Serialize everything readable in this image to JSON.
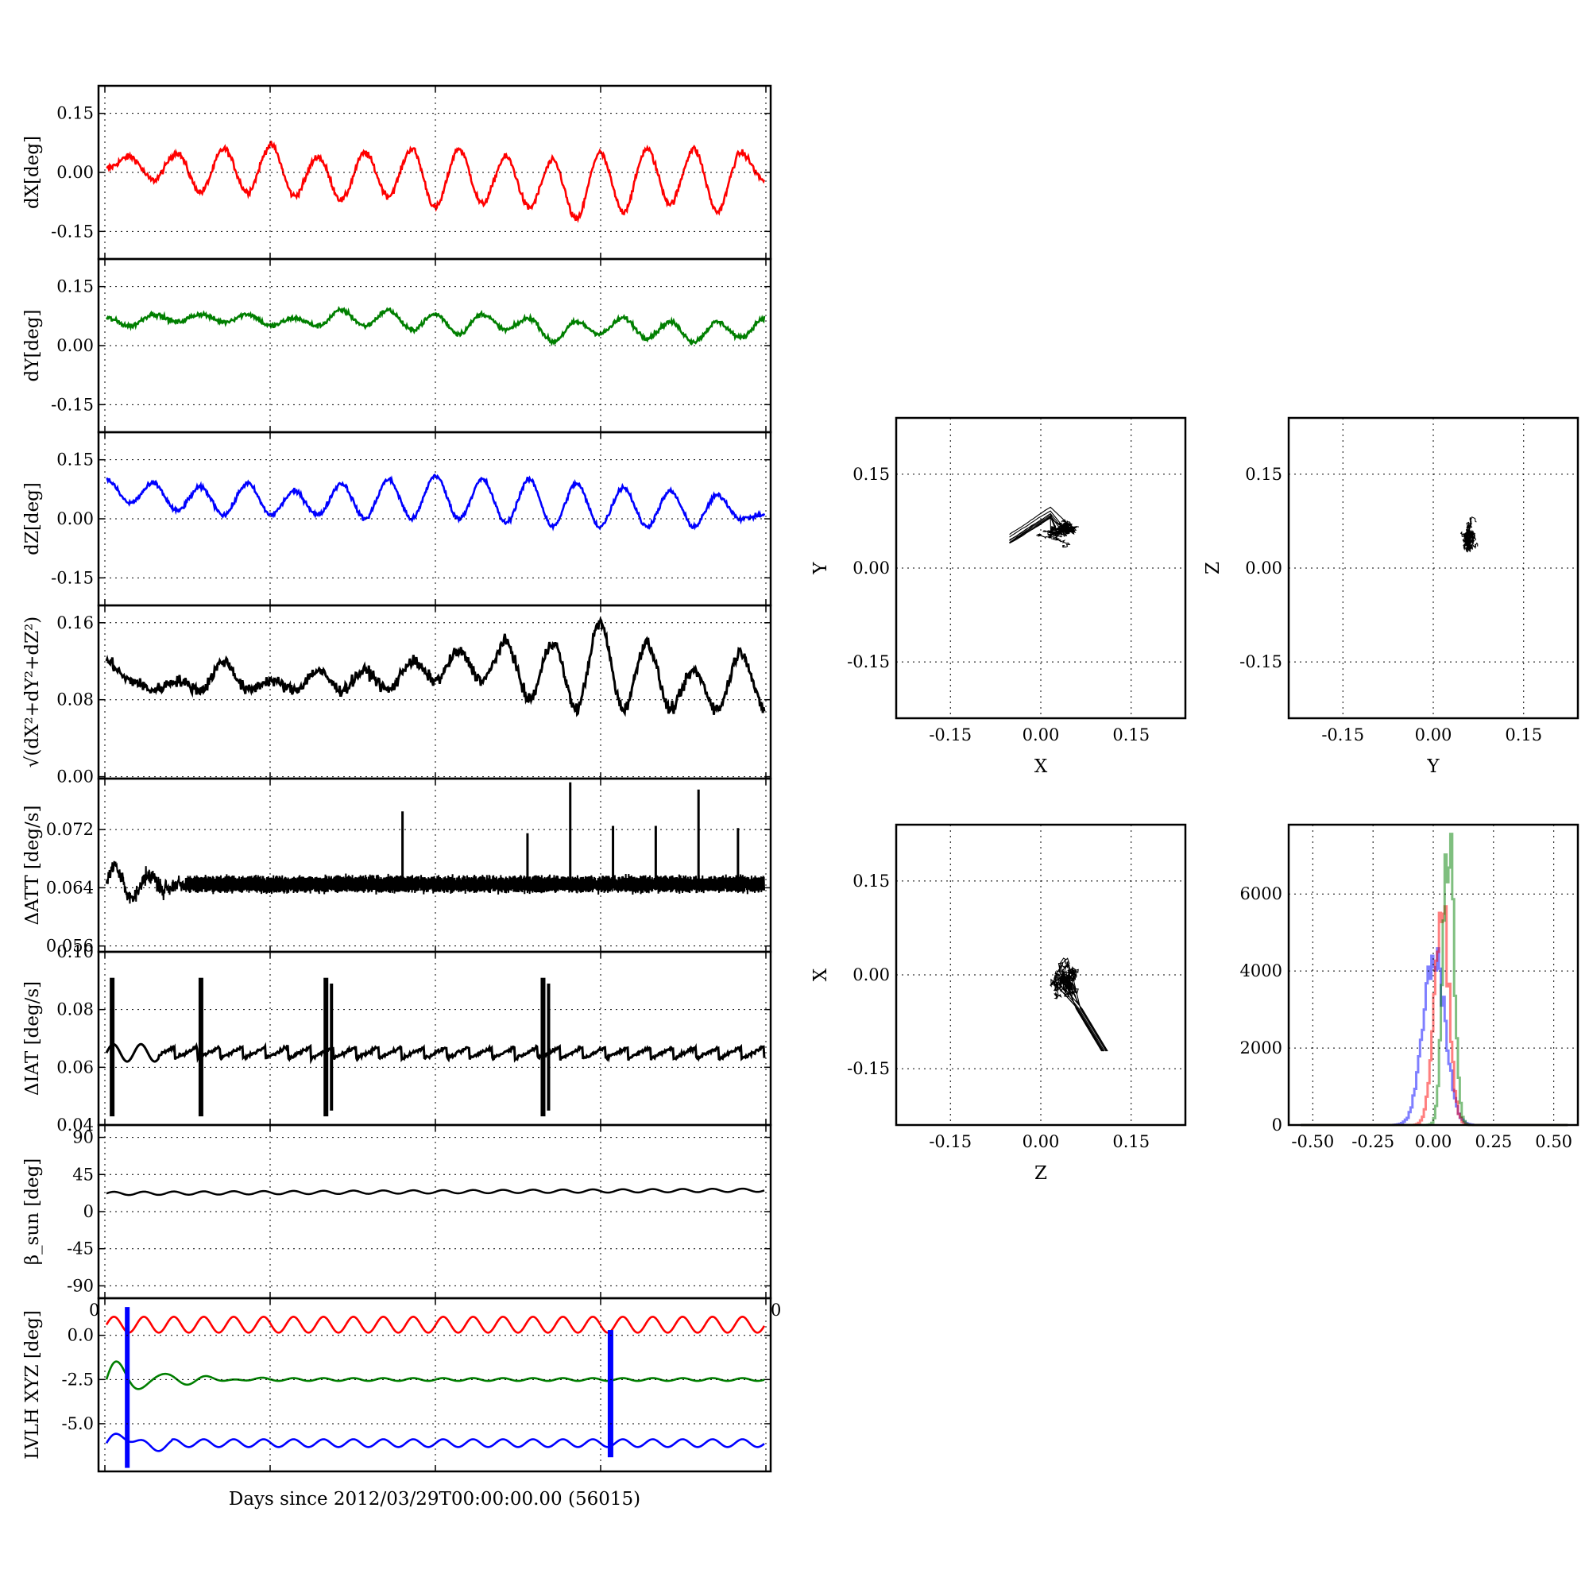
{
  "figure": {
    "xlabel_bottom": "Days since 2012/03/29T00:00:00.00 (56015)"
  },
  "chart_data": [
    {
      "id": "dx",
      "type": "line",
      "ylabel": "dX[deg]",
      "ylim": [
        -0.22,
        0.22
      ],
      "yticks": [
        "0.15",
        "0.00",
        "-0.15"
      ],
      "ytick_values": [
        0.15,
        0.0,
        -0.15
      ],
      "series": [
        {
          "color": "#ff0000",
          "period": 0.0625,
          "mean": -0.005,
          "amp": 0.06,
          "noise": 0.008,
          "values": [
            0.01,
            0.04,
            -0.02,
            0.05,
            -0.05,
            0.06,
            -0.05,
            0.07,
            -0.06,
            0.04,
            -0.07,
            0.05,
            -0.06,
            0.06,
            -0.09,
            0.06,
            -0.08,
            0.04,
            -0.09,
            0.03,
            -0.12,
            0.05,
            -0.1,
            0.06,
            -0.08,
            0.06,
            -0.1,
            0.05,
            -0.02
          ]
        }
      ],
      "grid": true
    },
    {
      "id": "dy",
      "type": "line",
      "ylabel": "dY[deg]",
      "ylim": [
        -0.22,
        0.22
      ],
      "yticks": [
        "0.15",
        "0.00",
        "-0.15"
      ],
      "ytick_values": [
        0.15,
        0.0,
        -0.15
      ],
      "series": [
        {
          "color": "#007f00",
          "period": 0.0625,
          "mean": 0.06,
          "amp": 0.025,
          "noise": 0.006,
          "values": [
            0.07,
            0.05,
            0.08,
            0.06,
            0.08,
            0.06,
            0.08,
            0.05,
            0.07,
            0.05,
            0.09,
            0.05,
            0.09,
            0.04,
            0.08,
            0.03,
            0.08,
            0.04,
            0.07,
            0.01,
            0.06,
            0.03,
            0.07,
            0.02,
            0.06,
            0.01,
            0.06,
            0.02,
            0.07
          ]
        }
      ],
      "grid": true
    },
    {
      "id": "dz",
      "type": "line",
      "ylabel": "dZ[deg]",
      "ylim": [
        -0.22,
        0.22
      ],
      "yticks": [
        "0.15",
        "0.00",
        "-0.15"
      ],
      "ytick_values": [
        0.15,
        0.0,
        -0.15
      ],
      "series": [
        {
          "color": "#0000ff",
          "period": 0.0625,
          "mean": 0.045,
          "amp": 0.04,
          "noise": 0.006,
          "values": [
            0.1,
            0.04,
            0.09,
            0.02,
            0.08,
            0.01,
            0.09,
            0.01,
            0.07,
            0.01,
            0.09,
            0.0,
            0.1,
            0.0,
            0.11,
            0.0,
            0.1,
            -0.01,
            0.1,
            -0.02,
            0.09,
            -0.02,
            0.08,
            -0.02,
            0.07,
            -0.02,
            0.06,
            0.0,
            0.01
          ]
        }
      ],
      "grid": true
    },
    {
      "id": "dtot",
      "type": "line",
      "ylabel": "√(dX²+dY²+dZ²)",
      "ylim": [
        -0.002,
        0.178
      ],
      "yticks": [
        "0.16",
        "0.08",
        "0.00"
      ],
      "ytick_values": [
        0.16,
        0.08,
        0.0
      ],
      "series": [
        {
          "color": "#000000",
          "period": 0.0625,
          "mean": 0.09,
          "amp": 0.01,
          "noise": 0.006,
          "values": [
            0.12,
            0.1,
            0.09,
            0.1,
            0.09,
            0.12,
            0.09,
            0.1,
            0.09,
            0.11,
            0.09,
            0.11,
            0.09,
            0.12,
            0.1,
            0.13,
            0.1,
            0.14,
            0.08,
            0.14,
            0.07,
            0.16,
            0.07,
            0.14,
            0.07,
            0.11,
            0.07,
            0.13,
            0.07
          ]
        }
      ],
      "grid": true
    },
    {
      "id": "datt",
      "type": "line",
      "ylabel": "ΔATT [deg/s]",
      "ylim": [
        0.0552,
        0.079
      ],
      "yticks": [
        "0.072",
        "0.064",
        "0.056"
      ],
      "ytick_values": [
        0.072,
        0.064,
        0.056
      ],
      "series": [
        {
          "color": "#000000",
          "mean": 0.0645,
          "spikes": [
            {
              "x": 0.45,
              "y": 0.0745
            },
            {
              "x": 0.64,
              "y": 0.0715
            },
            {
              "x": 0.705,
              "y": 0.0785
            },
            {
              "x": 0.77,
              "y": 0.0725
            },
            {
              "x": 0.835,
              "y": 0.0725
            },
            {
              "x": 0.9,
              "y": 0.0775
            },
            {
              "x": 0.96,
              "y": 0.0722
            }
          ]
        }
      ],
      "grid": true
    },
    {
      "id": "diat",
      "type": "line",
      "ylabel": "ΔIAT [deg/s]",
      "ylim": [
        0.04,
        0.1
      ],
      "yticks": [
        "0.10",
        "0.08",
        "0.06",
        "0.04"
      ],
      "ytick_values": [
        0.1,
        0.08,
        0.06,
        0.04
      ],
      "series": [
        {
          "color": "#000000",
          "mean": 0.065,
          "bursts": [
            0.005,
            0.14,
            0.33,
            0.66
          ]
        }
      ],
      "grid": true
    },
    {
      "id": "beta",
      "type": "line",
      "ylabel": "β_sun [deg]",
      "ylim": [
        -105,
        105
      ],
      "yticks": [
        "90",
        "45",
        "0",
        "-45",
        "-90"
      ],
      "ytick_values": [
        90,
        45,
        0,
        -45,
        -90
      ],
      "series": [
        {
          "color": "#000000",
          "mean": 22,
          "amp": 2,
          "period": 0.0455
        }
      ],
      "grid": true
    },
    {
      "id": "lvlh",
      "type": "line",
      "ylabel": "LVLH XYZ [deg]",
      "ylim": [
        -7.7,
        2.1
      ],
      "yticks": [
        "0.0",
        "-2.5",
        "-5.0"
      ],
      "ytick_values": [
        0.0,
        -2.5,
        -5.0
      ],
      "xticks_shown": [
        "0",
        "0"
      ],
      "series": [
        {
          "color": "#ff0000",
          "mean": 0.6,
          "amp": 0.45
        },
        {
          "color": "#007f00",
          "mean": -2.5,
          "amp": 0.08
        },
        {
          "color": "#0000ff",
          "mean": -6.1,
          "amp": 0.22
        }
      ],
      "grid": true
    },
    {
      "id": "xy",
      "type": "scatter",
      "xlabel": "X",
      "ylabel": "Y",
      "xlim": [
        -0.24,
        0.24
      ],
      "ylim": [
        -0.24,
        0.24
      ],
      "xticks": [
        "-0.15",
        "0.00",
        "0.15"
      ],
      "yticks": [
        "0.15",
        "0.00",
        "-0.15"
      ],
      "tick_values": [
        -0.15,
        0.0,
        0.15
      ],
      "cloud": {
        "cx": 0.04,
        "cy": 0.06,
        "sx": 0.035,
        "sy": 0.018,
        "hook": "left"
      },
      "grid": true
    },
    {
      "id": "yz",
      "type": "scatter",
      "xlabel": "Y",
      "ylabel": "Z",
      "xlim": [
        -0.24,
        0.24
      ],
      "ylim": [
        -0.24,
        0.24
      ],
      "xticks": [
        "-0.15",
        "0.00",
        "0.15"
      ],
      "yticks": [
        "0.15",
        "0.00",
        "-0.15"
      ],
      "tick_values": [
        -0.15,
        0.0,
        0.15
      ],
      "cloud": {
        "cx": 0.06,
        "cy": 0.045,
        "sx": 0.018,
        "sy": 0.03,
        "hook": "none"
      },
      "grid": true
    },
    {
      "id": "zx",
      "type": "scatter",
      "xlabel": "Z",
      "ylabel": "X",
      "xlim": [
        -0.24,
        0.24
      ],
      "ylim": [
        -0.24,
        0.24
      ],
      "xticks": [
        "-0.15",
        "0.00",
        "0.15"
      ],
      "yticks": [
        "0.15",
        "0.00",
        "-0.15"
      ],
      "tick_values": [
        -0.15,
        0.0,
        0.15
      ],
      "cloud": {
        "cx": 0.04,
        "cy": -0.01,
        "sx": 0.025,
        "sy": 0.045,
        "hook": "down"
      },
      "grid": true
    },
    {
      "id": "hist",
      "type": "line",
      "xlabel": "",
      "ylabel": "",
      "xlim": [
        -0.6,
        0.6
      ],
      "ylim": [
        0,
        7800
      ],
      "xticks": [
        "-0.50",
        "-0.25",
        "0.00",
        "0.25",
        "0.50"
      ],
      "xtick_values": [
        -0.5,
        -0.25,
        0.0,
        0.25,
        0.5
      ],
      "yticks": [
        "6000",
        "4000",
        "2000",
        "0"
      ],
      "ytick_values": [
        6000,
        4000,
        2000,
        0
      ],
      "series": [
        {
          "color": "#0000ff",
          "alpha": 0.5,
          "center": 0.0,
          "width": 0.045,
          "peak": 4300
        },
        {
          "color": "#ff0000",
          "alpha": 0.5,
          "center": 0.03,
          "width": 0.03,
          "peak": 5900
        },
        {
          "color": "#007f00",
          "alpha": 0.5,
          "center": 0.06,
          "width": 0.022,
          "peak": 7600
        }
      ],
      "grid": true
    }
  ]
}
